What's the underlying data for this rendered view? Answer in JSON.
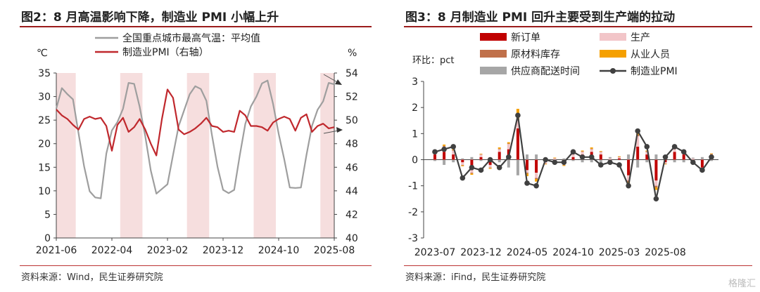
{
  "left": {
    "title": "图2：8 月高温影响下降，制造业 PMI 小幅上升",
    "source": "资料来源：Wind，民生证券研究院",
    "chart_data": {
      "type": "line",
      "left_unit": "℃",
      "right_unit": "%",
      "x_tick_labels": [
        "2021-06",
        "2022-04",
        "2023-02",
        "2023-12",
        "2024-10",
        "2025-08"
      ],
      "ylim_left": [
        0,
        35
      ],
      "y_ticks_left": [
        "0",
        "5",
        "10",
        "15",
        "20",
        "25",
        "30",
        "35"
      ],
      "ylim_right": [
        40,
        54
      ],
      "y_ticks_right": [
        "40",
        "42",
        "44",
        "46",
        "48",
        "50",
        "52",
        "54"
      ],
      "x_start": "2021-06",
      "x_end": "2025-08",
      "shaded_ranges": [
        [
          "2021-06",
          "2021-09"
        ],
        [
          "2022-06",
          "2022-09"
        ],
        [
          "2023-06",
          "2023-09"
        ],
        [
          "2024-06",
          "2024-09"
        ],
        [
          "2025-06",
          "2025-08"
        ]
      ],
      "series": [
        {
          "name": "全国重点城市最高气温：平均值",
          "axis": "left",
          "color": "#9e9e9e",
          "values": [
            27.5,
            31.8,
            30.5,
            29.4,
            22.2,
            15.2,
            9.9,
            8.6,
            8.4,
            17.9,
            22.8,
            24.6,
            27.4,
            32.9,
            32.7,
            27.8,
            21.6,
            14.3,
            9.4,
            10.4,
            11.4,
            17.6,
            23.7,
            27.1,
            30.5,
            32.2,
            31.6,
            29.1,
            21.8,
            15.1,
            10.2,
            9.5,
            10.2,
            17.5,
            24.2,
            27.9,
            30.0,
            32.8,
            33.4,
            28.4,
            22.1,
            16.7,
            10.7,
            10.6,
            10.7,
            17.6,
            23.8,
            27.2,
            29.0,
            32.9,
            32.6
          ]
        },
        {
          "name": "制造业PMI（右轴）",
          "axis": "right",
          "color": "#c0282d",
          "values": [
            50.9,
            50.4,
            50.1,
            49.6,
            49.2,
            50.1,
            50.3,
            50.1,
            50.2,
            49.5,
            47.4,
            49.6,
            50.2,
            49.0,
            49.4,
            50.1,
            49.2,
            48.0,
            47.0,
            50.1,
            52.6,
            51.9,
            49.2,
            48.8,
            49.0,
            49.3,
            49.7,
            50.2,
            49.5,
            49.4,
            49.0,
            49.1,
            49.0,
            50.8,
            50.4,
            49.5,
            49.5,
            49.4,
            49.1,
            49.8,
            50.1,
            50.3,
            50.1,
            49.1,
            50.2,
            50.5,
            49.0,
            49.5,
            49.7,
            49.3,
            49.4
          ]
        }
      ]
    }
  },
  "right": {
    "title": "图3：8 月制造业 PMI 回升主要受到生产端的拉动",
    "source": "资料来源：iFind，民生证券研究院",
    "chart_data": {
      "type": "bar",
      "ylabel": "环比：pct",
      "ylim": [
        -3,
        3
      ],
      "y_ticks": [
        "-3",
        "-2",
        "-1",
        "0",
        "1",
        "2",
        "3"
      ],
      "x_tick_labels": [
        "2023-07",
        "2023-12",
        "2024-05",
        "2024-10",
        "2025-03",
        "2025-08"
      ],
      "x_start": "2023-07",
      "series": [
        {
          "name": "新订单",
          "color": "#c00000",
          "values": [
            0.2,
            0.3,
            0.2,
            -0.1,
            -0.4,
            0.1,
            -0.2,
            0.3,
            0.4,
            1.2,
            -0.4,
            -0.5,
            -0.1,
            -0.05,
            -0.1,
            0.1,
            0.2,
            0.3,
            0.2,
            -0.1,
            0.05,
            -0.6,
            0.5,
            0.2,
            -0.8,
            -0.1,
            0.3,
            0.2,
            -0.1,
            -0.3,
            0.1
          ]
        },
        {
          "name": "生产",
          "color": "#f2c5c8",
          "values": [
            0.1,
            0.2,
            0.15,
            -0.1,
            -0.1,
            0.1,
            -0.1,
            0.1,
            0.2,
            0.3,
            -0.1,
            -0.2,
            -0.05,
            0.05,
            -0.1,
            0.1,
            0.1,
            0.1,
            0.1,
            0.05,
            0.05,
            -0.2,
            0.4,
            0.1,
            -0.2,
            -0.05,
            0.1,
            0.1,
            0.05,
            -0.1,
            0.1
          ]
        },
        {
          "name": "原材料库存",
          "color": "#c0704a",
          "values": [
            0.02,
            0.03,
            0.02,
            -0.02,
            -0.03,
            0.01,
            -0.02,
            0.02,
            0.02,
            0.05,
            -0.03,
            -0.04,
            -0.01,
            0.01,
            -0.01,
            0.02,
            0.02,
            0.02,
            0.01,
            -0.01,
            0.01,
            -0.05,
            0.05,
            0.02,
            -0.06,
            -0.01,
            0.02,
            0.02,
            -0.01,
            -0.02,
            0.02
          ]
        },
        {
          "name": "从业人员",
          "color": "#f5a000",
          "values": [
            0.05,
            0.05,
            0.03,
            -0.03,
            -0.05,
            0.02,
            -0.03,
            0.05,
            0.05,
            0.4,
            -0.1,
            -0.1,
            -0.02,
            0.02,
            -0.03,
            0.03,
            0.03,
            0.05,
            0.02,
            -0.02,
            0.02,
            -0.1,
            0.1,
            0.03,
            -0.1,
            -0.02,
            0.05,
            0.03,
            -0.02,
            -0.05,
            0.02
          ]
        },
        {
          "name": "供应商配送时间",
          "color": "#a6a6a6",
          "values": [
            -0.05,
            -0.2,
            -0.1,
            0.05,
            0.1,
            -0.05,
            0.05,
            -0.1,
            -0.3,
            -0.6,
            0.2,
            0.2,
            0.05,
            -0.02,
            0.05,
            -0.05,
            -0.1,
            -0.1,
            -0.1,
            0.05,
            -0.02,
            0.2,
            -0.3,
            -0.1,
            0.2,
            0.05,
            -0.1,
            -0.1,
            0.03,
            0.1,
            -0.05
          ]
        }
      ],
      "line": {
        "name": "制造业PMI",
        "color": "#404040",
        "values": [
          0.3,
          0.4,
          0.5,
          -0.7,
          -0.3,
          -0.4,
          0.0,
          -0.3,
          0.1,
          1.7,
          -0.9,
          -1.0,
          0.0,
          -0.1,
          -0.1,
          0.3,
          0.1,
          0.1,
          -0.2,
          -0.1,
          -0.2,
          -1.0,
          1.1,
          0.5,
          -1.5,
          0.1,
          0.5,
          0.3,
          -0.1,
          -0.4,
          0.1
        ]
      }
    }
  },
  "watermark": "格隆汇"
}
